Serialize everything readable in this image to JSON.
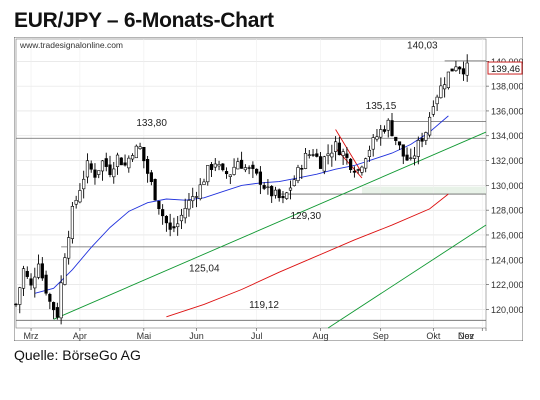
{
  "title": "EUR/JPY – 6-Monats-Chart",
  "watermark": "www.tradesignalonline.com",
  "source": "Quelle: BörseGo AG",
  "colors": {
    "price": "#000000",
    "ma": "#2233dd",
    "ma_long": "#dd1111",
    "trend_green": "#119933",
    "sr_line": "#666666",
    "band": "#e8f2e8",
    "flag": "#dd1111",
    "current_box": "#cc2222"
  },
  "chart_data": {
    "type": "candlestick",
    "title": "EUR/JPY – 6-Monats-Chart",
    "xlabel": "",
    "ylabel": "",
    "ylim": [
      118.5,
      141.8
    ],
    "x_range_days": [
      0,
      125
    ],
    "y_ticks": [
      "120,000",
      "122,000",
      "124,000",
      "126,000",
      "128,000",
      "130,000",
      "132,000",
      "134,000",
      "136,000",
      "138,000",
      "140,000"
    ],
    "y_tick_values": [
      120,
      122,
      124,
      126,
      128,
      130,
      132,
      134,
      136,
      138,
      140
    ],
    "month_labels": [
      "Mrz",
      "Apr",
      "Mai",
      "Jun",
      "Jul",
      "Aug",
      "Sep",
      "Okt",
      "Nov",
      "Dez"
    ],
    "month_positions_days": [
      4,
      17,
      34,
      48,
      64,
      81,
      97,
      111,
      124,
      138
    ],
    "current_value": "139,46",
    "current_value_num": 139.46,
    "horizontal_levels": [
      {
        "value": 140.03,
        "label": "140,03"
      },
      {
        "value": 135.15,
        "label": "135,15"
      },
      {
        "value": 133.8,
        "label": "133,80"
      },
      {
        "value": 129.3,
        "label": "129,30"
      },
      {
        "value": 125.04,
        "label": "125,04"
      },
      {
        "value": 119.12,
        "label": "119,12"
      }
    ],
    "support_band": [
      129.3,
      129.9
    ],
    "price_anchors": [
      [
        0,
        120.4
      ],
      [
        2,
        123.2
      ],
      [
        4,
        121.8
      ],
      [
        6,
        124.0
      ],
      [
        7,
        122.6
      ],
      [
        9,
        120.6
      ],
      [
        11,
        119.6
      ],
      [
        13,
        124.5
      ],
      [
        15,
        127.9
      ],
      [
        17,
        129.8
      ],
      [
        19,
        131.6
      ],
      [
        21,
        130.9
      ],
      [
        23,
        131.9
      ],
      [
        25,
        131.2
      ],
      [
        27,
        132.3
      ],
      [
        29,
        131.6
      ],
      [
        31,
        132.8
      ],
      [
        33,
        133.0
      ],
      [
        35,
        131.0
      ],
      [
        37,
        129.2
      ],
      [
        39,
        127.6
      ],
      [
        41,
        126.3
      ],
      [
        43,
        126.9
      ],
      [
        45,
        128.2
      ],
      [
        47,
        129.1
      ],
      [
        49,
        129.9
      ],
      [
        51,
        131.2
      ],
      [
        53,
        131.9
      ],
      [
        55,
        130.9
      ],
      [
        57,
        131.0
      ],
      [
        59,
        132.0
      ],
      [
        61,
        131.4
      ],
      [
        63,
        131.0
      ],
      [
        65,
        130.4
      ],
      [
        67,
        129.5
      ],
      [
        69,
        129.2
      ],
      [
        71,
        128.7
      ],
      [
        73,
        129.9
      ],
      [
        75,
        131.1
      ],
      [
        77,
        132.3
      ],
      [
        79,
        132.7
      ],
      [
        81,
        131.8
      ],
      [
        83,
        132.6
      ],
      [
        85,
        133.2
      ],
      [
        87,
        132.6
      ],
      [
        89,
        131.7
      ],
      [
        91,
        131.2
      ],
      [
        93,
        132.5
      ],
      [
        95,
        133.5
      ],
      [
        97,
        134.4
      ],
      [
        99,
        135.0
      ],
      [
        101,
        133.7
      ],
      [
        103,
        132.4
      ],
      [
        105,
        131.8
      ],
      [
        107,
        133.3
      ],
      [
        109,
        134.4
      ],
      [
        111,
        136.8
      ],
      [
        113,
        137.9
      ],
      [
        115,
        139.0
      ],
      [
        117,
        139.8
      ],
      [
        119,
        139.4
      ],
      [
        120,
        139.46
      ]
    ],
    "ma_short": [
      [
        5,
        121.3
      ],
      [
        10,
        121.7
      ],
      [
        15,
        123.2
      ],
      [
        20,
        125.0
      ],
      [
        25,
        126.6
      ],
      [
        30,
        127.9
      ],
      [
        35,
        128.6
      ],
      [
        40,
        128.9
      ],
      [
        45,
        128.8
      ],
      [
        50,
        129.0
      ],
      [
        55,
        129.5
      ],
      [
        60,
        130.0
      ],
      [
        65,
        130.2
      ],
      [
        70,
        130.3
      ],
      [
        75,
        130.6
      ],
      [
        80,
        130.9
      ],
      [
        85,
        131.3
      ],
      [
        90,
        131.6
      ],
      [
        95,
        132.1
      ],
      [
        100,
        132.6
      ],
      [
        105,
        133.3
      ],
      [
        110,
        134.3
      ],
      [
        115,
        135.6
      ]
    ],
    "ma_long": [
      [
        40,
        119.4
      ],
      [
        50,
        120.4
      ],
      [
        60,
        121.6
      ],
      [
        70,
        123.0
      ],
      [
        80,
        124.3
      ],
      [
        90,
        125.6
      ],
      [
        100,
        126.8
      ],
      [
        110,
        128.1
      ],
      [
        115,
        129.3
      ]
    ],
    "trend_lines": [
      {
        "from": [
          10,
          119.2
        ],
        "to": [
          125,
          134.3
        ]
      },
      {
        "from": [
          83,
          118.5
        ],
        "to": [
          125,
          126.8
        ]
      }
    ],
    "flag_lines": [
      {
        "from": [
          85,
          134.5
        ],
        "to": [
          92,
          131.0
        ]
      },
      {
        "from": [
          85,
          133.0
        ],
        "to": [
          92,
          130.6
        ]
      }
    ]
  }
}
